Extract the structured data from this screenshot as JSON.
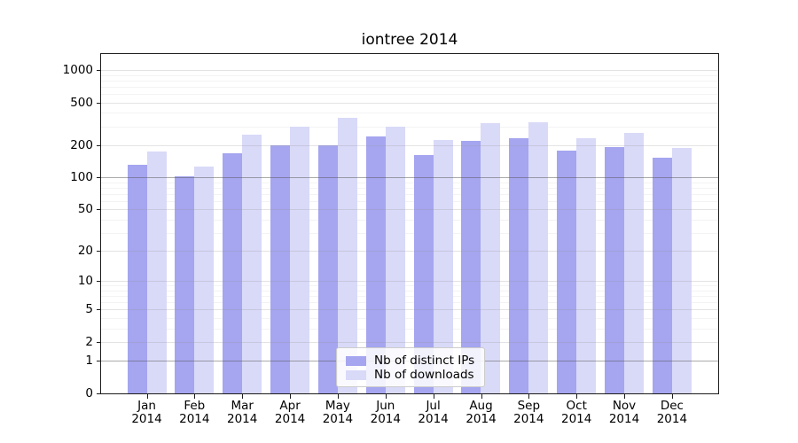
{
  "chart_data": {
    "type": "bar",
    "title": "iontree 2014",
    "categories": [
      "Jan",
      "Feb",
      "Mar",
      "Apr",
      "May",
      "Jun",
      "Jul",
      "Aug",
      "Sep",
      "Oct",
      "Nov",
      "Dec"
    ],
    "x_year": "2014",
    "series": [
      {
        "name": "Nb of distinct IPs",
        "color": "#a5a5f0",
        "values": [
          130,
          102,
          167,
          200,
          200,
          240,
          162,
          219,
          232,
          178,
          192,
          152
        ]
      },
      {
        "name": "Nb of downloads",
        "color": "#d9d9f8",
        "values": [
          176,
          127,
          250,
          300,
          357,
          300,
          223,
          320,
          326,
          232,
          260,
          190
        ]
      }
    ],
    "y_ticks": [
      0,
      1,
      2,
      5,
      10,
      20,
      50,
      100,
      200,
      500,
      1000
    ],
    "scale": "log1p",
    "ylim": [
      0,
      1400
    ],
    "grid": true,
    "grid_emphasis_values": [
      1,
      100
    ],
    "legend_position": "lower center"
  }
}
